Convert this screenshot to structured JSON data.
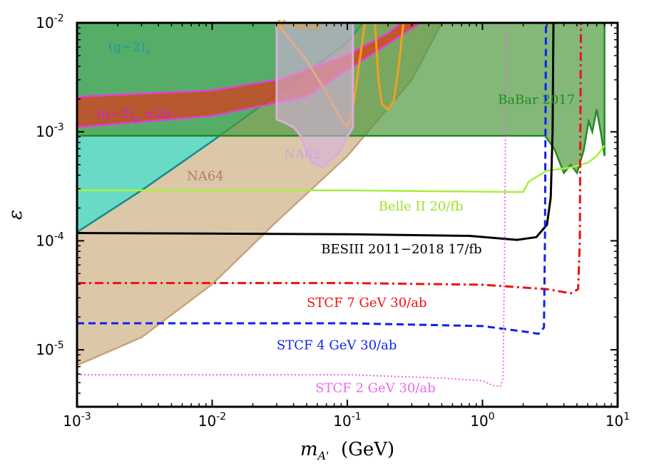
{
  "chart_data": {
    "type": "area",
    "xscale": "log",
    "yscale": "log",
    "xlim": [
      0.001,
      10
    ],
    "ylim": [
      3e-06,
      0.01
    ],
    "xlabel": "m_{A'} (GeV)",
    "ylabel": "ε",
    "x_ticks": [
      {
        "value": 0.001,
        "base": "10",
        "exp": "-3"
      },
      {
        "value": 0.01,
        "base": "10",
        "exp": "-2"
      },
      {
        "value": 0.1,
        "base": "10",
        "exp": "-1"
      },
      {
        "value": 1,
        "base": "10",
        "exp": "0"
      },
      {
        "value": 10,
        "base": "10",
        "exp": "1"
      }
    ],
    "y_ticks": [
      {
        "value": 1e-05,
        "base": "10",
        "exp": "-5"
      },
      {
        "value": 0.0001,
        "base": "10",
        "exp": "-4"
      },
      {
        "value": 0.001,
        "base": "10",
        "exp": "-3"
      },
      {
        "value": 0.01,
        "base": "10",
        "exp": "-2"
      }
    ],
    "regions": [
      {
        "name": "NA64",
        "fill": "#d2b48c",
        "stroke": "#c9a27a",
        "opacity": 0.75,
        "points": [
          [
            0.001,
            7.2e-06
          ],
          [
            0.003,
            1.3e-05
          ],
          [
            0.01,
            4e-05
          ],
          [
            0.03,
            0.00015
          ],
          [
            0.1,
            0.0006
          ],
          [
            0.3,
            0.003
          ],
          [
            0.5,
            0.01
          ],
          [
            0.001,
            0.01
          ]
        ]
      },
      {
        "name": "(g-2)_e",
        "fill": "#40e0d0",
        "stroke": "#158a8a",
        "opacity": 0.75,
        "points": [
          [
            0.001,
            0.00012
          ],
          [
            0.003,
            0.00029
          ],
          [
            0.01,
            0.00082
          ],
          [
            0.03,
            0.0022
          ],
          [
            0.1,
            0.0066
          ],
          [
            0.13,
            0.01
          ],
          [
            0.001,
            0.01
          ]
        ]
      },
      {
        "name": "BaBar 2017",
        "fill": "#4e9a40",
        "stroke": "#228b22",
        "opacity": 0.7,
        "points": [
          [
            0.001,
            0.00092
          ],
          [
            0.3,
            0.00092
          ],
          [
            2.9,
            0.00092
          ],
          [
            3.4,
            0.0007
          ],
          [
            4.0,
            0.00042
          ],
          [
            4.5,
            0.0005
          ],
          [
            5.0,
            0.00042
          ],
          [
            5.6,
            0.00067
          ],
          [
            6.1,
            0.00125
          ],
          [
            6.5,
            0.001
          ],
          [
            7.0,
            0.0016
          ],
          [
            7.5,
            0.001
          ],
          [
            8.0,
            0.0006
          ],
          [
            8.0,
            0.01
          ],
          [
            0.001,
            0.01
          ]
        ]
      },
      {
        "name": "(g-2)_μ ±2σ",
        "fill": "#ec2b10",
        "stroke": "#e040e0",
        "opacity": 0.65,
        "points": [
          [
            0.001,
            0.0021
          ],
          [
            0.01,
            0.0024
          ],
          [
            0.03,
            0.003
          ],
          [
            0.1,
            0.0051
          ],
          [
            0.2,
            0.008
          ],
          [
            0.25,
            0.01
          ],
          [
            0.35,
            0.01
          ],
          [
            0.15,
            0.0051
          ],
          [
            0.05,
            0.0021
          ],
          [
            0.01,
            0.0014
          ],
          [
            0.001,
            0.0011
          ]
        ]
      }
    ],
    "curves": [
      {
        "name": "K→πνν",
        "color": "#f0a020",
        "width": 3,
        "dash": "",
        "points": [
          [
            0.03,
            0.01
          ],
          [
            0.05,
            0.0045
          ],
          [
            0.07,
            0.0023
          ],
          [
            0.09,
            0.0013
          ],
          [
            0.1,
            0.0011
          ],
          [
            0.11,
            0.0016
          ],
          [
            0.12,
            0.0035
          ],
          [
            0.135,
            0.01
          ]
        ]
      },
      {
        "name": "K→πνν",
        "color": "#f0a020",
        "width": 3,
        "dash": "",
        "points": [
          [
            0.16,
            0.01
          ],
          [
            0.17,
            0.003
          ],
          [
            0.18,
            0.0018
          ],
          [
            0.2,
            0.0016
          ],
          [
            0.22,
            0.0019
          ],
          [
            0.24,
            0.004
          ],
          [
            0.26,
            0.01
          ]
        ]
      },
      {
        "name": "NA62",
        "color": "#d8b0d8",
        "width": 3,
        "dash": "",
        "fill": "#d8b0e0",
        "points": [
          [
            0.03,
            0.01
          ],
          [
            0.03,
            0.0013
          ],
          [
            0.035,
            0.0012
          ],
          [
            0.04,
            0.0011
          ],
          [
            0.045,
            0.00092
          ],
          [
            0.05,
            0.00065
          ],
          [
            0.055,
            0.00052
          ],
          [
            0.065,
            0.00047
          ],
          [
            0.075,
            0.00055
          ],
          [
            0.085,
            0.00062
          ],
          [
            0.1,
            0.0009
          ],
          [
            0.11,
            0.0011
          ],
          [
            0.11,
            0.01
          ]
        ]
      },
      {
        "name": "Belle II 20/fb",
        "color": "#a6f040",
        "width": 2.5,
        "dash": "",
        "points": [
          [
            0.001,
            0.00029
          ],
          [
            0.1,
            0.00029
          ],
          [
            2.0,
            0.00028
          ],
          [
            2.2,
            0.00035
          ],
          [
            3.0,
            0.00044
          ],
          [
            4.5,
            0.00047
          ],
          [
            6.0,
            0.00052
          ],
          [
            7.0,
            0.0006
          ],
          [
            8.0,
            0.00075
          ]
        ]
      },
      {
        "name": "BESIII 2011−2018 17/fb",
        "color": "#000000",
        "width": 3,
        "dash": "",
        "points": [
          [
            0.001,
            0.000118
          ],
          [
            0.1,
            0.000115
          ],
          [
            0.8,
            0.000111
          ],
          [
            1.8,
            0.000102
          ],
          [
            2.5,
            0.000108
          ],
          [
            3.0,
            0.00014
          ],
          [
            3.2,
            0.00025
          ],
          [
            3.3,
            0.001
          ],
          [
            3.35,
            0.01
          ]
        ]
      },
      {
        "name": "STCF 7 GeV 30/ab",
        "color": "#ee1111",
        "width": 3,
        "dash": "12 5 3 5",
        "points": [
          [
            0.001,
            4.1e-05
          ],
          [
            0.1,
            4.1e-05
          ],
          [
            1.0,
            3.95e-05
          ],
          [
            3.0,
            3.6e-05
          ],
          [
            4.5,
            3.3e-05
          ],
          [
            5.1,
            3.6e-05
          ],
          [
            5.25,
            0.0001
          ],
          [
            5.35,
            0.01
          ]
        ]
      },
      {
        "name": "STCF 4 GeV 30/ab",
        "color": "#1020ee",
        "width": 3,
        "dash": "10 6",
        "points": [
          [
            0.001,
            1.75e-05
          ],
          [
            0.1,
            1.75e-05
          ],
          [
            1.0,
            1.65e-05
          ],
          [
            2.2,
            1.45e-05
          ],
          [
            2.6,
            1.4e-05
          ],
          [
            2.85,
            1.6e-05
          ],
          [
            2.9,
            0.0001
          ],
          [
            2.95,
            0.01
          ]
        ]
      },
      {
        "name": "STCF 2 GeV 30/ab",
        "color": "#ee66ee",
        "width": 2,
        "dash": "2 3",
        "points": [
          [
            0.001,
            5.9e-06
          ],
          [
            0.1,
            5.9e-06
          ],
          [
            0.5,
            5.5e-06
          ],
          [
            1.0,
            5.2e-06
          ],
          [
            1.2,
            4.7e-06
          ],
          [
            1.35,
            4.6e-06
          ],
          [
            1.42,
            5.5e-06
          ],
          [
            1.46,
            0.0001
          ],
          [
            1.5,
            0.01
          ]
        ]
      }
    ],
    "labels": [
      {
        "text": "(g−2)",
        "sub": "e",
        "color": "#1c9c9c",
        "x": 0.0017,
        "y": 0.0055
      },
      {
        "text": "K→πνν",
        "color": "#f0a020",
        "x": 0.03,
        "y": 0.0087
      },
      {
        "text": "(g−2)",
        "sub": "μ",
        "suffix": " ±2σ",
        "color": "#d020d0",
        "x": 0.0014,
        "y": 0.00135
      },
      {
        "text": "BaBar 2017",
        "color": "#228b22",
        "x": 1.3,
        "y": 0.0018
      },
      {
        "text": "NA62",
        "color": "#c8a8d8",
        "x": 0.034,
        "y": 0.00057
      },
      {
        "text": "NA64",
        "color": "#b08060",
        "x": 0.0065,
        "y": 0.00036
      },
      {
        "text": "Belle II 20/fb",
        "color": "#9ce030",
        "x": 0.17,
        "y": 0.00019
      },
      {
        "text": "BESIII 2011−2018 17/fb",
        "color": "#000000",
        "x": 0.064,
        "y": 7.7e-05
      },
      {
        "text": "STCF 7 GeV 30/ab",
        "color": "#ee1111",
        "x": 0.05,
        "y": 2.47e-05
      },
      {
        "text": "STCF 4 GeV 30/ab",
        "color": "#1020ee",
        "x": 0.03,
        "y": 1.01e-05
      },
      {
        "text": "STCF 2 GeV 30/ab",
        "color": "#ee66ee",
        "x": 0.058,
        "y": 4.1e-06
      }
    ]
  }
}
